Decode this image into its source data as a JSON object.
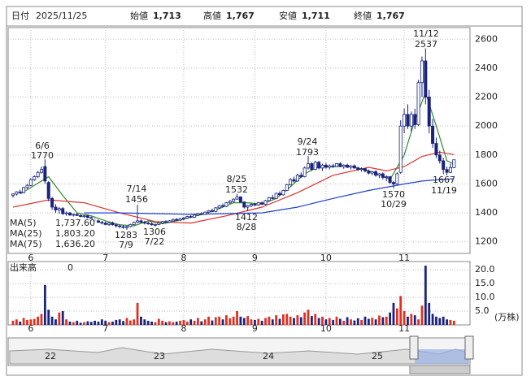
{
  "header": {
    "date_label": "日付",
    "date": "2025/11/25",
    "fields": [
      {
        "label": "始値",
        "value": "1,713",
        "color": "#000000"
      },
      {
        "label": "高値",
        "value": "1,767",
        "color": "#e00000"
      },
      {
        "label": "安値",
        "value": "1,711",
        "color": "#008000"
      },
      {
        "label": "終値",
        "value": "1,767",
        "color": "#000000"
      }
    ]
  },
  "chart_data": [
    {
      "type": "candlestick",
      "ylim": [
        1120,
        2680
      ],
      "yticks": [
        1200,
        1400,
        1600,
        1800,
        2000,
        2200,
        2400,
        2600
      ],
      "xlim": [
        -1.37,
        128.5
      ],
      "xticks": [
        {
          "value": 5,
          "label": "6"
        },
        {
          "value": 26,
          "label": "7"
        },
        {
          "value": 48,
          "label": "8"
        },
        {
          "value": 68,
          "label": "9"
        },
        {
          "value": 88,
          "label": "10"
        },
        {
          "value": 110,
          "label": "11"
        }
      ],
      "grid": true,
      "ohlc": [
        [
          1520,
          1535,
          1505,
          1530
        ],
        [
          1530,
          1550,
          1520,
          1545
        ],
        [
          1545,
          1560,
          1535,
          1540
        ],
        [
          1540,
          1580,
          1535,
          1575
        ],
        [
          1575,
          1600,
          1565,
          1590
        ],
        [
          1590,
          1640,
          1585,
          1630
        ],
        [
          1630,
          1660,
          1620,
          1650
        ],
        [
          1650,
          1690,
          1640,
          1680
        ],
        [
          1680,
          1720,
          1670,
          1700
        ],
        [
          1720,
          1770,
          1600,
          1620
        ],
        [
          1610,
          1620,
          1480,
          1500
        ],
        [
          1500,
          1510,
          1420,
          1440
        ],
        [
          1440,
          1460,
          1400,
          1420
        ],
        [
          1420,
          1440,
          1395,
          1430
        ],
        [
          1430,
          1440,
          1385,
          1395
        ],
        [
          1395,
          1410,
          1380,
          1400
        ],
        [
          1400,
          1405,
          1380,
          1385
        ],
        [
          1385,
          1395,
          1375,
          1390
        ],
        [
          1390,
          1398,
          1378,
          1382
        ],
        [
          1382,
          1390,
          1370,
          1375
        ],
        [
          1375,
          1385,
          1365,
          1380
        ],
        [
          1380,
          1388,
          1362,
          1368
        ],
        [
          1368,
          1375,
          1350,
          1355
        ],
        [
          1355,
          1365,
          1340,
          1345
        ],
        [
          1345,
          1355,
          1330,
          1335
        ],
        [
          1335,
          1345,
          1320,
          1330
        ],
        [
          1330,
          1340,
          1315,
          1320
        ],
        [
          1320,
          1335,
          1310,
          1330
        ],
        [
          1330,
          1340,
          1312,
          1318
        ],
        [
          1318,
          1325,
          1300,
          1310
        ],
        [
          1310,
          1320,
          1295,
          1305
        ],
        [
          1305,
          1315,
          1290,
          1300
        ],
        [
          1300,
          1310,
          1283,
          1305
        ],
        [
          1305,
          1325,
          1300,
          1320
        ],
        [
          1320,
          1340,
          1315,
          1335
        ],
        [
          1335,
          1456,
          1330,
          1345
        ],
        [
          1345,
          1355,
          1330,
          1335
        ],
        [
          1335,
          1345,
          1320,
          1330
        ],
        [
          1330,
          1340,
          1318,
          1325
        ],
        [
          1325,
          1335,
          1312,
          1318
        ],
        [
          1318,
          1325,
          1306,
          1320
        ],
        [
          1320,
          1335,
          1315,
          1330
        ],
        [
          1330,
          1345,
          1325,
          1340
        ],
        [
          1340,
          1350,
          1330,
          1335
        ],
        [
          1335,
          1350,
          1330,
          1345
        ],
        [
          1345,
          1360,
          1340,
          1355
        ],
        [
          1355,
          1365,
          1345,
          1350
        ],
        [
          1350,
          1365,
          1345,
          1360
        ],
        [
          1360,
          1372,
          1350,
          1365
        ],
        [
          1365,
          1380,
          1360,
          1375
        ],
        [
          1375,
          1385,
          1365,
          1370
        ],
        [
          1370,
          1390,
          1365,
          1385
        ],
        [
          1385,
          1400,
          1378,
          1395
        ],
        [
          1395,
          1405,
          1385,
          1390
        ],
        [
          1390,
          1410,
          1385,
          1405
        ],
        [
          1405,
          1420,
          1398,
          1415
        ],
        [
          1415,
          1430,
          1405,
          1410
        ],
        [
          1410,
          1440,
          1405,
          1435
        ],
        [
          1435,
          1455,
          1425,
          1450
        ],
        [
          1450,
          1465,
          1440,
          1445
        ],
        [
          1445,
          1475,
          1440,
          1470
        ],
        [
          1470,
          1490,
          1460,
          1480
        ],
        [
          1480,
          1500,
          1470,
          1495
        ],
        [
          1495,
          1532,
          1490,
          1510
        ],
        [
          1510,
          1515,
          1470,
          1475
        ],
        [
          1475,
          1480,
          1430,
          1440
        ],
        [
          1440,
          1455,
          1412,
          1450
        ],
        [
          1450,
          1465,
          1440,
          1460
        ],
        [
          1460,
          1470,
          1445,
          1455
        ],
        [
          1455,
          1475,
          1450,
          1470
        ],
        [
          1470,
          1480,
          1455,
          1460
        ],
        [
          1460,
          1490,
          1455,
          1485
        ],
        [
          1485,
          1510,
          1480,
          1505
        ],
        [
          1505,
          1525,
          1495,
          1500
        ],
        [
          1500,
          1540,
          1495,
          1535
        ],
        [
          1535,
          1550,
          1520,
          1525
        ],
        [
          1525,
          1560,
          1520,
          1555
        ],
        [
          1555,
          1600,
          1550,
          1595
        ],
        [
          1595,
          1640,
          1590,
          1630
        ],
        [
          1630,
          1650,
          1610,
          1620
        ],
        [
          1620,
          1670,
          1615,
          1660
        ],
        [
          1660,
          1680,
          1640,
          1650
        ],
        [
          1650,
          1720,
          1645,
          1710
        ],
        [
          1710,
          1793,
          1700,
          1740
        ],
        [
          1740,
          1750,
          1690,
          1700
        ],
        [
          1700,
          1760,
          1695,
          1750
        ],
        [
          1750,
          1760,
          1700,
          1710
        ],
        [
          1710,
          1740,
          1690,
          1730
        ],
        [
          1730,
          1745,
          1705,
          1715
        ],
        [
          1715,
          1735,
          1700,
          1725
        ],
        [
          1725,
          1740,
          1710,
          1720
        ],
        [
          1720,
          1745,
          1715,
          1740
        ],
        [
          1740,
          1750,
          1715,
          1720
        ],
        [
          1720,
          1735,
          1705,
          1730
        ],
        [
          1730,
          1740,
          1710,
          1715
        ],
        [
          1715,
          1730,
          1700,
          1725
        ],
        [
          1725,
          1735,
          1705,
          1710
        ],
        [
          1710,
          1720,
          1690,
          1700
        ],
        [
          1700,
          1715,
          1685,
          1705
        ],
        [
          1705,
          1710,
          1680,
          1690
        ],
        [
          1690,
          1700,
          1665,
          1675
        ],
        [
          1675,
          1690,
          1660,
          1685
        ],
        [
          1685,
          1695,
          1650,
          1660
        ],
        [
          1660,
          1675,
          1640,
          1670
        ],
        [
          1670,
          1680,
          1630,
          1645
        ],
        [
          1645,
          1660,
          1620,
          1650
        ],
        [
          1650,
          1655,
          1600,
          1610
        ],
        [
          1610,
          1620,
          1570,
          1600
        ],
        [
          1600,
          1680,
          1595,
          1670
        ],
        [
          1680,
          2040,
          1670,
          2000
        ],
        [
          2000,
          2120,
          1950,
          2080
        ],
        [
          2080,
          2150,
          1980,
          2000
        ],
        [
          2000,
          2100,
          1960,
          2080
        ],
        [
          2080,
          2120,
          1980,
          2010
        ],
        [
          2010,
          2320,
          2000,
          2300
        ],
        [
          2300,
          2480,
          2200,
          2450
        ],
        [
          2450,
          2537,
          2150,
          2200
        ],
        [
          2200,
          2250,
          1950,
          2000
        ],
        [
          2000,
          2050,
          1850,
          1880
        ],
        [
          1880,
          1920,
          1780,
          1800
        ],
        [
          1800,
          1830,
          1740,
          1760
        ],
        [
          1760,
          1780,
          1667,
          1700
        ],
        [
          1700,
          1720,
          1660,
          1680
        ],
        [
          1680,
          1740,
          1675,
          1713
        ],
        [
          1713,
          1767,
          1711,
          1767
        ]
      ],
      "series": [
        {
          "name": "MA(5)",
          "color": "#2e8b2e",
          "value_label": "1,737.60",
          "x": [
            2,
            6,
            10,
            14,
            18,
            22,
            26,
            30,
            34,
            38,
            42,
            46,
            50,
            54,
            58,
            62,
            66,
            70,
            74,
            78,
            82,
            86,
            90,
            94,
            98,
            102,
            106,
            110,
            113,
            116,
            119,
            122,
            124
          ],
          "values": [
            1530,
            1590,
            1650,
            1520,
            1400,
            1380,
            1345,
            1318,
            1310,
            1345,
            1325,
            1345,
            1370,
            1395,
            1430,
            1470,
            1470,
            1460,
            1500,
            1580,
            1670,
            1720,
            1720,
            1725,
            1705,
            1675,
            1630,
            1800,
            2040,
            2230,
            2000,
            1760,
            1737.6
          ]
        },
        {
          "name": "MA(25)",
          "color": "#e03030",
          "value_label": "1,803.20",
          "x": [
            0,
            10,
            20,
            30,
            40,
            50,
            60,
            70,
            80,
            90,
            100,
            105,
            110,
            115,
            120,
            124
          ],
          "values": [
            1440,
            1490,
            1470,
            1400,
            1340,
            1330,
            1380,
            1440,
            1540,
            1660,
            1715,
            1690,
            1720,
            1790,
            1820,
            1803.2
          ]
        },
        {
          "name": "MA(75)",
          "color": "#2040d0",
          "value_label": "1,636.20",
          "x": [
            20,
            30,
            40,
            50,
            60,
            70,
            80,
            90,
            100,
            110,
            115,
            120,
            124
          ],
          "values": [
            1400,
            1400,
            1395,
            1390,
            1395,
            1400,
            1440,
            1500,
            1555,
            1600,
            1620,
            1630,
            1636.2
          ]
        }
      ],
      "annotations": [
        {
          "date": "6/6",
          "price": 1770
        },
        {
          "date": "7/14",
          "price": 1456
        },
        {
          "date": "7/9",
          "price": 1283
        },
        {
          "date": "7/22",
          "price": 1306
        },
        {
          "date": "8/25",
          "price": 1532
        },
        {
          "date": "8/28",
          "price": 1412
        },
        {
          "date": "9/24",
          "price": 1793
        },
        {
          "date": "10/29",
          "price": 1570
        },
        {
          "date": "11/12",
          "price": 2537
        },
        {
          "date": "11/19",
          "price": 1667
        }
      ]
    },
    {
      "type": "bar",
      "title": "出来高",
      "current": 0,
      "unit": "(万株)",
      "ylim": [
        0,
        23
      ],
      "yticks": [
        {
          "value": 5,
          "label": "5.0"
        },
        {
          "value": 10,
          "label": "10.0"
        },
        {
          "value": 15,
          "label": "15.0"
        },
        {
          "value": 20,
          "label": "20.0"
        }
      ],
      "values": [
        1.5,
        2,
        1.2,
        2.5,
        1.8,
        2,
        2.2,
        3,
        4,
        14.5,
        5.5,
        3,
        2,
        4.5,
        5,
        2,
        1.2,
        1,
        1.5,
        0.8,
        1,
        1.3,
        1.1,
        1.5,
        1.2,
        2,
        1.5,
        1,
        1.2,
        1.8,
        2,
        1.4,
        2.5,
        1.6,
        2,
        8,
        3,
        2,
        1.5,
        1.2,
        1,
        2.2,
        1.5,
        1,
        1.3,
        1,
        1.2,
        1.5,
        1.8,
        1.2,
        2,
        1.5,
        2.5,
        1.3,
        2,
        3,
        1.6,
        2.8,
        3,
        2,
        3.5,
        2.4,
        3,
        5,
        3,
        2.5,
        3.2,
        2,
        1.8,
        2.2,
        1.5,
        2.5,
        3,
        2,
        3.5,
        2.2,
        3.8,
        4,
        3,
        2.5,
        3.5,
        2.8,
        4.5,
        5.5,
        3.2,
        4,
        2.5,
        3,
        2,
        2.5,
        1.8,
        3,
        2.2,
        1.5,
        2.8,
        2,
        1.6,
        2.4,
        1.8,
        3,
        2.2,
        2.6,
        2,
        3.4,
        2.8,
        3,
        4.5,
        8,
        6,
        10.5,
        5,
        3,
        4,
        3.5,
        2,
        7,
        21.5,
        8,
        4,
        3,
        2.5,
        3,
        2,
        1.8,
        1.5
      ]
    }
  ],
  "navigator": {
    "labels": [
      "22",
      "23",
      "24",
      "25"
    ]
  }
}
